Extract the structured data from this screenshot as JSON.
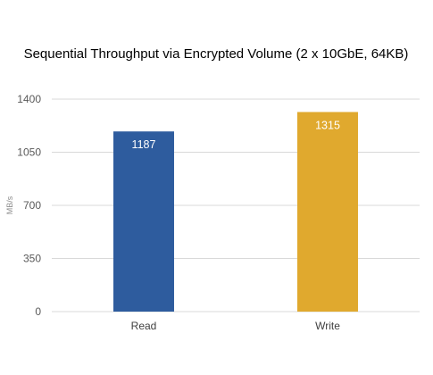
{
  "chart_data": {
    "type": "bar",
    "title": "Sequential Throughput via Encrypted Volume (2 x 10GbE, 64KB)",
    "xlabel": "",
    "ylabel": "MB/s",
    "categories": [
      "Read",
      "Write"
    ],
    "values": [
      1187,
      1315
    ],
    "data_labels": [
      "1187",
      "1315"
    ],
    "bar_colors": [
      "#2e5c9e",
      "#e0a92e"
    ],
    "ylim": [
      0,
      1400
    ],
    "yticks": [
      0,
      350,
      700,
      1050,
      1400
    ],
    "ytick_labels": [
      "0",
      "350",
      "700",
      "1050",
      "1400"
    ],
    "grid": true,
    "legend": "none"
  }
}
